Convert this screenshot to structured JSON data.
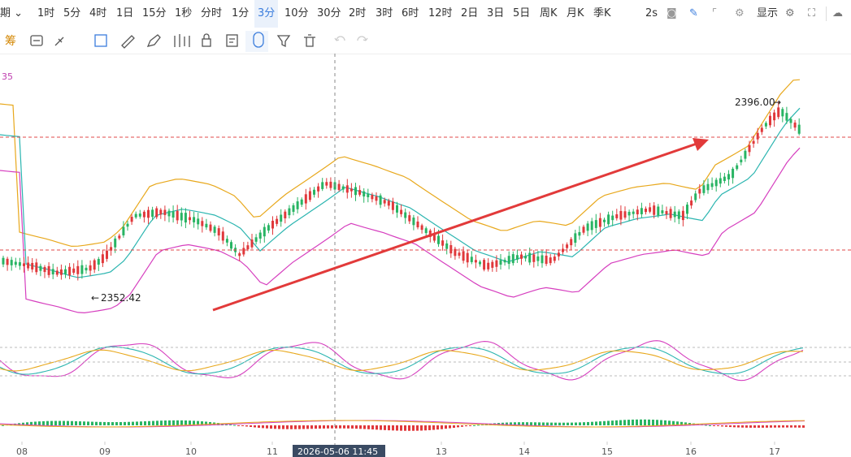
{
  "toolbar": {
    "period_label": "期",
    "intervals": [
      "1时",
      "5分",
      "4时",
      "1日",
      "15分",
      "1秒",
      "分时",
      "1分",
      "3分",
      "10分",
      "30分",
      "2时",
      "3时",
      "6时",
      "12时",
      "2日",
      "3日",
      "5日",
      "周K",
      "月K",
      "季K"
    ],
    "active_interval": "3分",
    "refresh": "2s",
    "display": "显示"
  },
  "drawing_tools": {
    "left_label": "筹",
    "names": [
      "chip-icon",
      "magnet-icon",
      "brush-icon",
      "rect-icon",
      "ruler-icon",
      "pen-icon",
      "bars-icon",
      "lock-icon",
      "note-icon",
      "magnet-draw-icon",
      "filter-icon",
      "trash-icon",
      "undo-icon",
      "redo-icon"
    ]
  },
  "indicator": {
    "value_label": "35"
  },
  "crosshair": {
    "time_label": "2026-05-06 11:45"
  },
  "annotations": {
    "high": "2396.00",
    "low": "2352.42"
  },
  "x_axis": {
    "labels": [
      "08",
      "09",
      "10",
      "11",
      "13",
      "14",
      "15",
      "16",
      "17"
    ]
  },
  "colors": {
    "up": "#28b463",
    "down": "#e0383b",
    "boll_upper": "#e8a81c",
    "boll_mid": "#2bb5b0",
    "boll_lower": "#d63fbf",
    "arrow": "#e23a3a",
    "accent": "#3b7ddd"
  },
  "chart_data": {
    "type": "candlestick",
    "price_range": [
      2340,
      2400
    ],
    "high": 2396.0,
    "low": 2352.42
  }
}
